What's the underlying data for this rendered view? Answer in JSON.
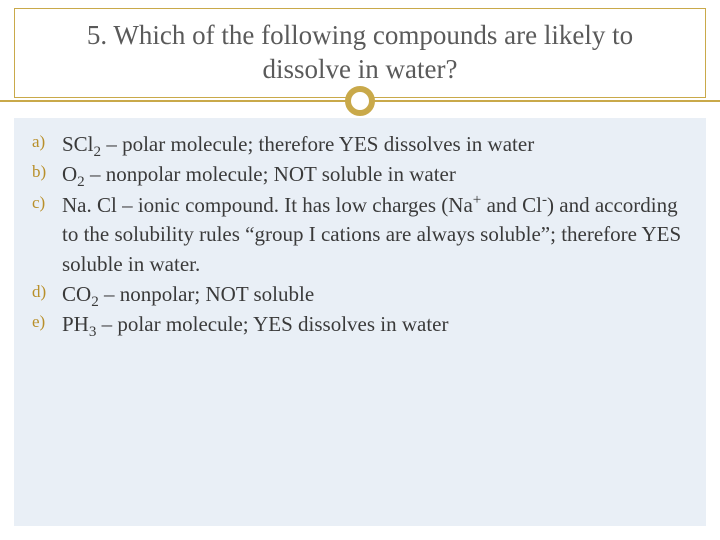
{
  "slide": {
    "title": "5. Which of the following compounds are likely to dissolve in water?",
    "title_color": "#5a5a5a",
    "title_fontsize": 27,
    "title_border_color": "#c9a94a",
    "accent_color": "#c9a94a",
    "panel_bg": "#e9eff6",
    "marker_color": "#b88f2a",
    "answer_color": "#3a3a3a",
    "answer_fontsize": 21,
    "items": [
      {
        "marker": "a)",
        "html": "SCl<sub>2</sub> – polar molecule; therefore YES dissolves in water"
      },
      {
        "marker": "b)",
        "html": "O<sub>2</sub> – nonpolar molecule; NOT soluble in water"
      },
      {
        "marker": "c)",
        "html": "Na. Cl – ionic compound.  It has low charges (Na<sup>+</sup> and Cl<sup>-</sup>) and according to the solubility rules “group I cations are always soluble”; therefore YES soluble in water."
      },
      {
        "marker": "d)",
        "html": "CO<sub>2</sub> – nonpolar; NOT soluble"
      },
      {
        "marker": "e)",
        "html": "PH<sub>3</sub> – polar molecule; YES dissolves in water"
      }
    ]
  }
}
